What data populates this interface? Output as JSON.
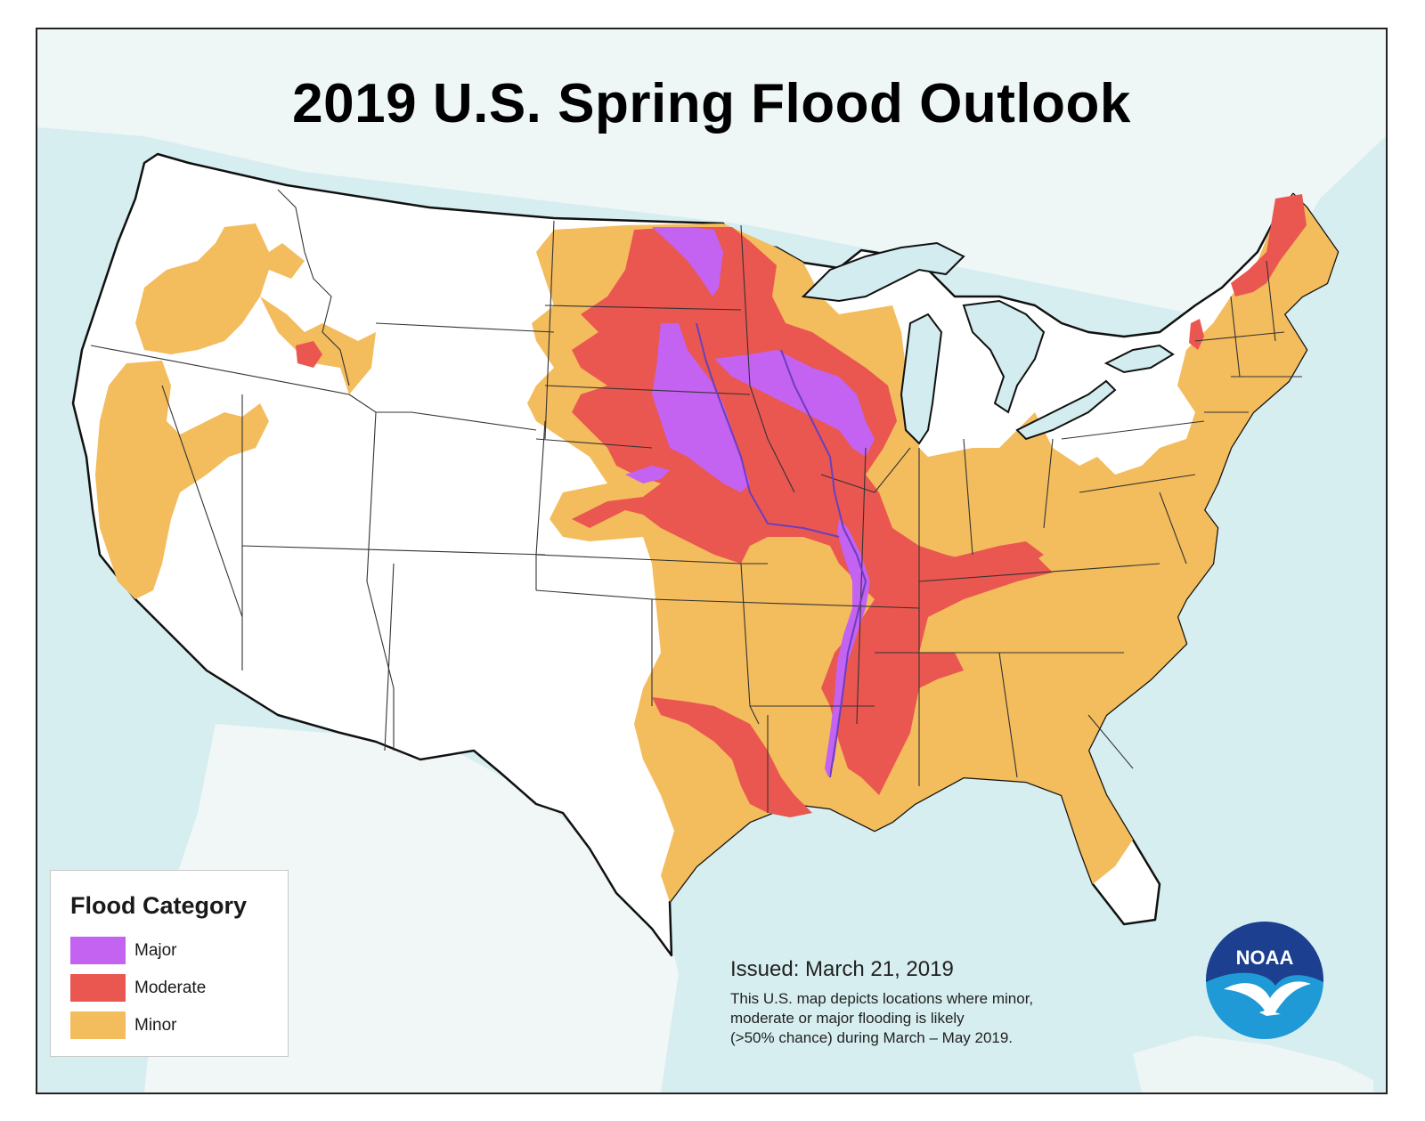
{
  "title": "2019 U.S. Spring Flood Outlook",
  "legend": {
    "title": "Flood Category",
    "items": [
      {
        "label": "Major",
        "color": "#c462f2"
      },
      {
        "label": "Moderate",
        "color": "#ea5750"
      },
      {
        "label": "Minor",
        "color": "#f3bc5d"
      }
    ]
  },
  "issued": "Issued:  March 21, 2019",
  "note_lines": [
    "This U.S. map depicts locations where minor,",
    "moderate or major flooding is likely",
    "(>50% chance) during March – May 2019."
  ],
  "logo_text": "NOAA",
  "colors": {
    "ocean": "#d6eef0",
    "land": "#ffffff",
    "lakes": "#d2ecef",
    "major": "#c462f2",
    "moderate": "#ea5750",
    "minor": "#f3bc5d"
  }
}
